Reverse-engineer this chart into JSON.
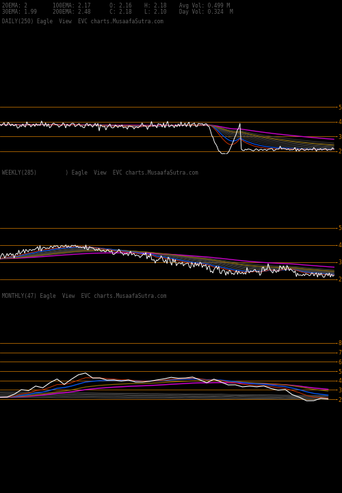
{
  "bg_color": "#000000",
  "text_color": "#606060",
  "orange_color": "#cc7700",
  "pink_color": "#cc00cc",
  "blue_color": "#0055ee",
  "white_color": "#ffffff",
  "dark_gray": "#555555",
  "brown_color": "#886600",
  "red_orange": "#cc3300",
  "header_line1": "20EMA: 2        100EMA: 2.17      O: 2.16    H: 2.18    Avg Vol: 0.499 M",
  "header_line2": "30EMA: 1.99     200EMA: 2.48      C: 2.18    L: 2.10    Day Vol: 0.324  M",
  "panel1_label": "DAILY(250) Eagle  View  EVC charts.MusaafaSutra.com",
  "panel2_label": "WEEKLY(285)         ) Eagle  View  EVC charts.MusaafaSutra.com",
  "panel3_label": "MONTHLY(47) Eagle  View  EVC charts.MusaafaSutra.com",
  "panel1_yticks": [
    5,
    4,
    3,
    2
  ],
  "panel2_yticks": [
    5,
    4,
    3,
    2
  ],
  "panel3_yticks": [
    8,
    7,
    6,
    5,
    4,
    3,
    2
  ],
  "fig_w": 5.0,
  "fig_h": 7.2,
  "dpi": 100
}
